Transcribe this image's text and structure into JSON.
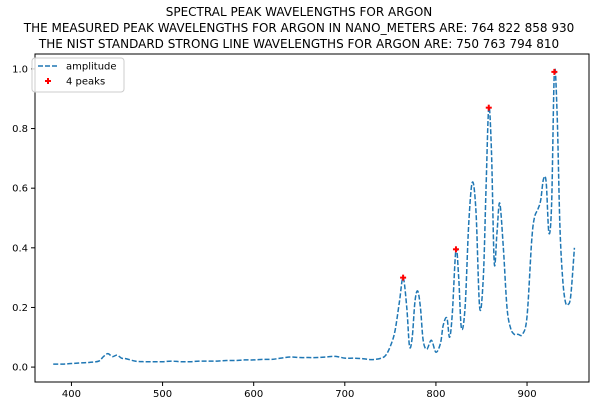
{
  "title_lines": [
    "SPECTRAL PEAK WAVELENGTHS FOR ARGON",
    "THE MEASURED PEAK WAVELENGTHS FOR ARGON IN NANO_METERS ARE: 764 822 858 930",
    "THE NIST STANDARD STRONG LINE WAVELENGTHS FOR ARGON ARE: 750 763 794 810"
  ],
  "chart_data": {
    "type": "line",
    "title": "SPECTRAL PEAK WAVELENGTHS FOR ARGON",
    "xlabel": "",
    "ylabel": "",
    "xlim": [
      360,
      968
    ],
    "ylim": [
      -0.05,
      1.05
    ],
    "xticks": [
      400,
      500,
      600,
      700,
      800,
      900
    ],
    "yticks": [
      0.0,
      0.2,
      0.4,
      0.6,
      0.8,
      1.0
    ],
    "xtick_labels": [
      "400",
      "500",
      "600",
      "700",
      "800",
      "900"
    ],
    "ytick_labels": [
      "0.0",
      "0.2",
      "0.4",
      "0.6",
      "0.8",
      "1.0"
    ],
    "grid": false,
    "legend_position": "top-left",
    "series": [
      {
        "name": "amplitude",
        "style": "dashed",
        "color": "#1f77b4",
        "x": [
          380,
          390,
          400,
          410,
          420,
          430,
          435,
          440,
          445,
          450,
          455,
          460,
          470,
          480,
          490,
          500,
          510,
          520,
          530,
          540,
          550,
          560,
          570,
          580,
          590,
          600,
          610,
          620,
          630,
          640,
          650,
          660,
          670,
          680,
          690,
          700,
          710,
          720,
          730,
          740,
          745,
          750,
          755,
          760,
          764,
          768,
          771,
          774,
          777,
          780,
          783,
          786,
          790,
          795,
          800,
          805,
          808,
          812,
          815,
          818,
          822,
          825,
          828,
          832,
          836,
          840,
          844,
          848,
          852,
          855,
          858,
          861,
          864,
          867,
          870,
          874,
          878,
          882,
          886,
          890,
          895,
          900,
          905,
          908,
          912,
          915,
          918,
          921,
          924,
          927,
          930,
          933,
          936,
          939,
          942,
          945,
          948,
          952
        ],
        "y": [
          0.01,
          0.01,
          0.012,
          0.014,
          0.016,
          0.02,
          0.035,
          0.045,
          0.035,
          0.04,
          0.03,
          0.028,
          0.02,
          0.018,
          0.018,
          0.018,
          0.02,
          0.018,
          0.018,
          0.02,
          0.02,
          0.02,
          0.022,
          0.022,
          0.024,
          0.024,
          0.026,
          0.026,
          0.03,
          0.034,
          0.032,
          0.032,
          0.032,
          0.034,
          0.036,
          0.03,
          0.03,
          0.028,
          0.025,
          0.03,
          0.04,
          0.07,
          0.12,
          0.22,
          0.3,
          0.2,
          0.07,
          0.1,
          0.22,
          0.255,
          0.2,
          0.09,
          0.06,
          0.09,
          0.05,
          0.08,
          0.14,
          0.165,
          0.1,
          0.18,
          0.395,
          0.3,
          0.13,
          0.2,
          0.48,
          0.62,
          0.52,
          0.2,
          0.3,
          0.6,
          0.87,
          0.72,
          0.35,
          0.45,
          0.55,
          0.4,
          0.2,
          0.13,
          0.11,
          0.11,
          0.11,
          0.17,
          0.42,
          0.5,
          0.53,
          0.56,
          0.63,
          0.62,
          0.45,
          0.55,
          0.99,
          0.85,
          0.48,
          0.3,
          0.22,
          0.21,
          0.24,
          0.4
        ]
      },
      {
        "name": "4 peaks",
        "style": "marker-plus",
        "color": "#ff0000",
        "x": [
          764,
          822,
          858,
          930
        ],
        "y": [
          0.3,
          0.395,
          0.87,
          0.99
        ]
      }
    ]
  }
}
